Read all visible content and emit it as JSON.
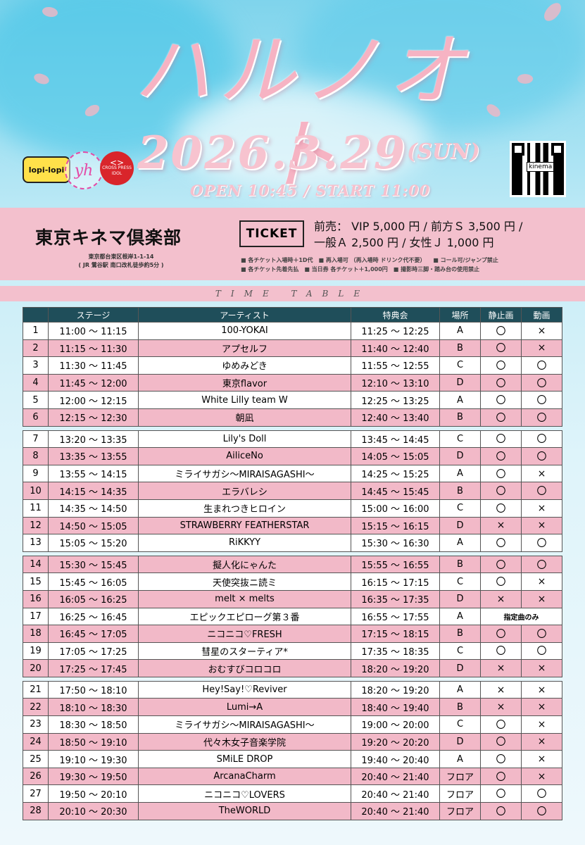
{
  "header": {
    "title": "ハルノオト",
    "date": "2026.3.29",
    "day": "(SUN)",
    "open_start": "OPEN 10:45 / START 11:00",
    "logos": {
      "lopi": "lopi-lopi",
      "yh": "yh",
      "cross_line1": "CROSS PRESS",
      "cross_line2": "IDOL"
    },
    "qr_label": "kinema"
  },
  "venue": {
    "name": "東京キネマ倶楽部",
    "address": "東京都台東区根岸1-1-14",
    "access": "( JR 鶯谷駅 南口改札徒歩約5分 )"
  },
  "ticket": {
    "label": "TICKET",
    "line1": "前売： VIP 5,000 円 / 前方Ｓ 3,500 円 /",
    "line2": "一般Ａ 2,500 円 / 女性Ｊ 1,000 円",
    "notes1": "■ 各チケット入場時＋1D代　■ 再入場可 （再入場時 ドリンク代不要） 　■ コール可/ジャンプ禁止",
    "notes2": "■ 各チケット先着先払　■ 当日券 各チケット＋1,000円　■ 撮影時三脚・踏み台の使用禁止"
  },
  "timetable_label": "TIME TABLE",
  "columns": [
    "",
    "ステージ",
    "アーティスト",
    "特典会",
    "場所",
    "静止画",
    "動画"
  ],
  "rows": [
    {
      "no": "1",
      "stage": "11:00 ～ 11:15",
      "artist": "100-YOKAI",
      "benefit": "11:25 ～ 12:25",
      "place": "A",
      "photo": "〇",
      "video": "×"
    },
    {
      "no": "2",
      "stage": "11:15 ～ 11:30",
      "artist": "アプセルフ",
      "benefit": "11:40 ～ 12:40",
      "place": "B",
      "photo": "〇",
      "video": "×"
    },
    {
      "no": "3",
      "stage": "11:30 ～ 11:45",
      "artist": "ゆめみどき",
      "benefit": "11:55 ～ 12:55",
      "place": "C",
      "photo": "〇",
      "video": "〇"
    },
    {
      "no": "4",
      "stage": "11:45 ～ 12:00",
      "artist": "東京flavor",
      "benefit": "12:10 ～ 13:10",
      "place": "D",
      "photo": "〇",
      "video": "〇"
    },
    {
      "no": "5",
      "stage": "12:00 ～ 12:15",
      "artist": "White Lilly team W",
      "benefit": "12:25 ～ 13:25",
      "place": "A",
      "photo": "〇",
      "video": "〇"
    },
    {
      "no": "6",
      "stage": "12:15 ～ 12:30",
      "artist": "朝凪",
      "benefit": "12:40 ～ 13:40",
      "place": "B",
      "photo": "〇",
      "video": "〇"
    },
    {
      "no": "7",
      "stage": "13:20 ～ 13:35",
      "artist": "Lily's Doll",
      "benefit": "13:45 ～ 14:45",
      "place": "C",
      "photo": "〇",
      "video": "〇"
    },
    {
      "no": "8",
      "stage": "13:35 ～ 13:55",
      "artist": "AiliceNo",
      "benefit": "14:05 ～ 15:05",
      "place": "D",
      "photo": "〇",
      "video": "〇"
    },
    {
      "no": "9",
      "stage": "13:55 ～ 14:15",
      "artist": "ミライサガシ～MIRAISAGASHI～",
      "benefit": "14:25 ～ 15:25",
      "place": "A",
      "photo": "〇",
      "video": "×"
    },
    {
      "no": "10",
      "stage": "14:15 ～ 14:35",
      "artist": "エラバレシ",
      "benefit": "14:45 ～ 15:45",
      "place": "B",
      "photo": "〇",
      "video": "〇"
    },
    {
      "no": "11",
      "stage": "14:35 ～ 14:50",
      "artist": "生まれつきヒロイン",
      "benefit": "15:00 ～ 16:00",
      "place": "C",
      "photo": "〇",
      "video": "×"
    },
    {
      "no": "12",
      "stage": "14:50 ～ 15:05",
      "artist": "STRAWBERRY FEATHERSTAR",
      "benefit": "15:15 ～ 16:15",
      "place": "D",
      "photo": "×",
      "video": "×"
    },
    {
      "no": "13",
      "stage": "15:05 ～ 15:20",
      "artist": "RiKKYY",
      "benefit": "15:30 ～ 16:30",
      "place": "A",
      "photo": "〇",
      "video": "〇"
    },
    {
      "no": "14",
      "stage": "15:30 ～ 15:45",
      "artist": "擬人化にゃんた",
      "benefit": "15:55 ～ 16:55",
      "place": "B",
      "photo": "〇",
      "video": "〇"
    },
    {
      "no": "15",
      "stage": "15:45 ～ 16:05",
      "artist": "天使突抜ニ読ミ",
      "benefit": "16:15 ～ 17:15",
      "place": "C",
      "photo": "〇",
      "video": "×"
    },
    {
      "no": "16",
      "stage": "16:05 ～ 16:25",
      "artist": "melt × melts",
      "benefit": "16:35 ～ 17:35",
      "place": "D",
      "photo": "×",
      "video": "×"
    },
    {
      "no": "17",
      "stage": "16:25 ～ 16:45",
      "artist": "エピックエピローグ第３番",
      "benefit": "16:55 ～ 17:55",
      "place": "A",
      "photo": "指定曲のみ",
      "video": "",
      "merged": true
    },
    {
      "no": "18",
      "stage": "16:45 ～ 17:05",
      "artist": "ニコニコ♡FRESH",
      "benefit": "17:15 ～ 18:15",
      "place": "B",
      "photo": "〇",
      "video": "〇"
    },
    {
      "no": "19",
      "stage": "17:05 ～ 17:25",
      "artist": "彗星のスターティア*",
      "benefit": "17:35 ～ 18:35",
      "place": "C",
      "photo": "〇",
      "video": "〇"
    },
    {
      "no": "20",
      "stage": "17:25 ～ 17:45",
      "artist": "おむすびコロコロ",
      "benefit": "18:20 ～ 19:20",
      "place": "D",
      "photo": "×",
      "video": "×"
    },
    {
      "no": "21",
      "stage": "17:50 ～ 18:10",
      "artist": "Hey!Say!♡Reviver",
      "benefit": "18:20 ～ 19:20",
      "place": "A",
      "photo": "×",
      "video": "×"
    },
    {
      "no": "22",
      "stage": "18:10 ～ 18:30",
      "artist": "Lumi→A",
      "benefit": "18:40 ～ 19:40",
      "place": "B",
      "photo": "×",
      "video": "×"
    },
    {
      "no": "23",
      "stage": "18:30 ～ 18:50",
      "artist": "ミライサガシ～MIRAISAGASHI～",
      "benefit": "19:00 ～ 20:00",
      "place": "C",
      "photo": "〇",
      "video": "×"
    },
    {
      "no": "24",
      "stage": "18:50 ～ 19:10",
      "artist": "代々木女子音楽学院",
      "benefit": "19:20 ～ 20:20",
      "place": "D",
      "photo": "〇",
      "video": "×"
    },
    {
      "no": "25",
      "stage": "19:10 ～ 19:30",
      "artist": "SMiLE DROP",
      "benefit": "19:40 ～ 20:40",
      "place": "A",
      "photo": "〇",
      "video": "×"
    },
    {
      "no": "26",
      "stage": "19:30 ～ 19:50",
      "artist": "ArcanaCharm",
      "benefit": "20:40 ～ 21:40",
      "place": "フロア",
      "photo": "〇",
      "video": "×"
    },
    {
      "no": "27",
      "stage": "19:50 ～ 20:10",
      "artist": "ニコニコ♡LOVERS",
      "benefit": "20:40 ～ 21:40",
      "place": "フロア",
      "photo": "〇",
      "video": "〇"
    },
    {
      "no": "28",
      "stage": "20:10 ～ 20:30",
      "artist": "TheWORLD",
      "benefit": "20:40 ～ 21:40",
      "place": "フロア",
      "photo": "〇",
      "video": "〇"
    }
  ],
  "colors": {
    "header_bg": "#1f4e5a",
    "pink": "#f2b9c8",
    "band": "#f3c0cd",
    "title": "#f6b3c3"
  }
}
